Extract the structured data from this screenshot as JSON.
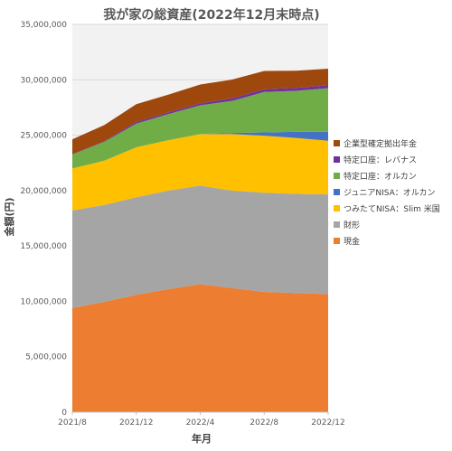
{
  "chart_data": {
    "type": "area",
    "stacked": true,
    "title": "我が家の総資産(2022年12月末時点)",
    "xlabel": "年月",
    "ylabel": "金額(円)",
    "x": [
      "2021/8",
      "2021/10",
      "2021/12",
      "2022/2",
      "2022/4",
      "2022/6",
      "2022/8",
      "2022/10",
      "2022/12"
    ],
    "x_tick_labels": [
      "2021/8",
      "2021/12",
      "2022/4",
      "2022/8",
      "2022/12"
    ],
    "ylim": [
      0,
      35000000
    ],
    "y_ticks": [
      0,
      5000000,
      10000000,
      15000000,
      20000000,
      25000000,
      30000000,
      35000000
    ],
    "y_tick_labels": [
      "0",
      "5,000,000",
      "10,000,000",
      "15,000,000",
      "20,000,000",
      "25,000,000",
      "30,000,000",
      "35,000,000"
    ],
    "legend_position": "right",
    "plot_background": "#f2f2f2",
    "series": [
      {
        "name": "現金",
        "color": "#ed7d31",
        "values": [
          9400000,
          9950000,
          10600000,
          11100000,
          11550000,
          11200000,
          10850000,
          10750000,
          10650000
        ]
      },
      {
        "name": "財形",
        "color": "#a5a5a5",
        "values": [
          8800000,
          8750000,
          8800000,
          8900000,
          8900000,
          8800000,
          8950000,
          8950000,
          9000000
        ]
      },
      {
        "name": "つみたてNISA：Slim 米国",
        "color": "#ffc000",
        "values": [
          3800000,
          4000000,
          4500000,
          4550000,
          4650000,
          5100000,
          5150000,
          5050000,
          4850000
        ]
      },
      {
        "name": "ジュニアNISA：オルカン",
        "color": "#4472c4",
        "values": [
          0,
          0,
          0,
          0,
          0,
          100000,
          300000,
          550000,
          800000
        ]
      },
      {
        "name": "特定口座：オルカン",
        "color": "#70ad47",
        "values": [
          1250000,
          1700000,
          2150000,
          2350000,
          2600000,
          2900000,
          3650000,
          3700000,
          3950000
        ]
      },
      {
        "name": "特定口座：レバナス",
        "color": "#7030a0",
        "values": [
          30000,
          60000,
          150000,
          160000,
          170000,
          220000,
          250000,
          270000,
          250000
        ]
      },
      {
        "name": "企業型確定拠出年金",
        "color": "#9e480e",
        "values": [
          1350000,
          1450000,
          1600000,
          1600000,
          1700000,
          1700000,
          1650000,
          1550000,
          1500000
        ]
      }
    ],
    "legend_order": [
      "企業型確定拠出年金",
      "特定口座：レバナス",
      "特定口座：オルカン",
      "ジュニアNISA：オルカン",
      "つみたてNISA：Slim 米国",
      "財形",
      "現金"
    ]
  }
}
